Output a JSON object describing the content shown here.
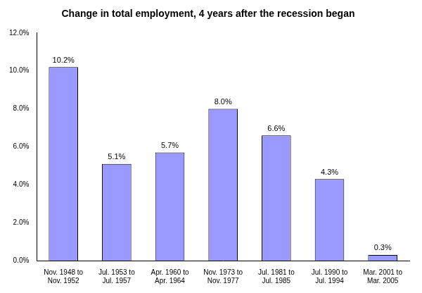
{
  "chart_data": {
    "type": "bar",
    "title": "Change in total employment, 4 years after the recession began",
    "categories": [
      "Nov. 1948 to Nov. 1952",
      "Jul. 1953 to Jul. 1957",
      "Apr. 1960 to Apr. 1964",
      "Nov. 1973 to Nov. 1977",
      "Jul. 1981 to Jul. 1985",
      "Jul. 1990 to Jul. 1994",
      "Mar. 2001 to Mar. 2005"
    ],
    "values": [
      10.2,
      5.1,
      5.7,
      8.0,
      6.6,
      4.3,
      0.3
    ],
    "value_labels": [
      "10.2%",
      "5.1%",
      "5.7%",
      "8.0%",
      "6.6%",
      "4.3%",
      "0.3%"
    ],
    "color": "#9999ff",
    "ylim": [
      0,
      12
    ],
    "yticks": [
      {
        "value": 0,
        "label": "0.0%"
      },
      {
        "value": 2,
        "label": "2.0%"
      },
      {
        "value": 4,
        "label": "4.0%"
      },
      {
        "value": 6,
        "label": "6.0%"
      },
      {
        "value": 8,
        "label": "8.0%"
      },
      {
        "value": 10,
        "label": "10.0%"
      },
      {
        "value": 12,
        "label": "12.0%"
      }
    ],
    "grid": false,
    "data_labels": true
  }
}
